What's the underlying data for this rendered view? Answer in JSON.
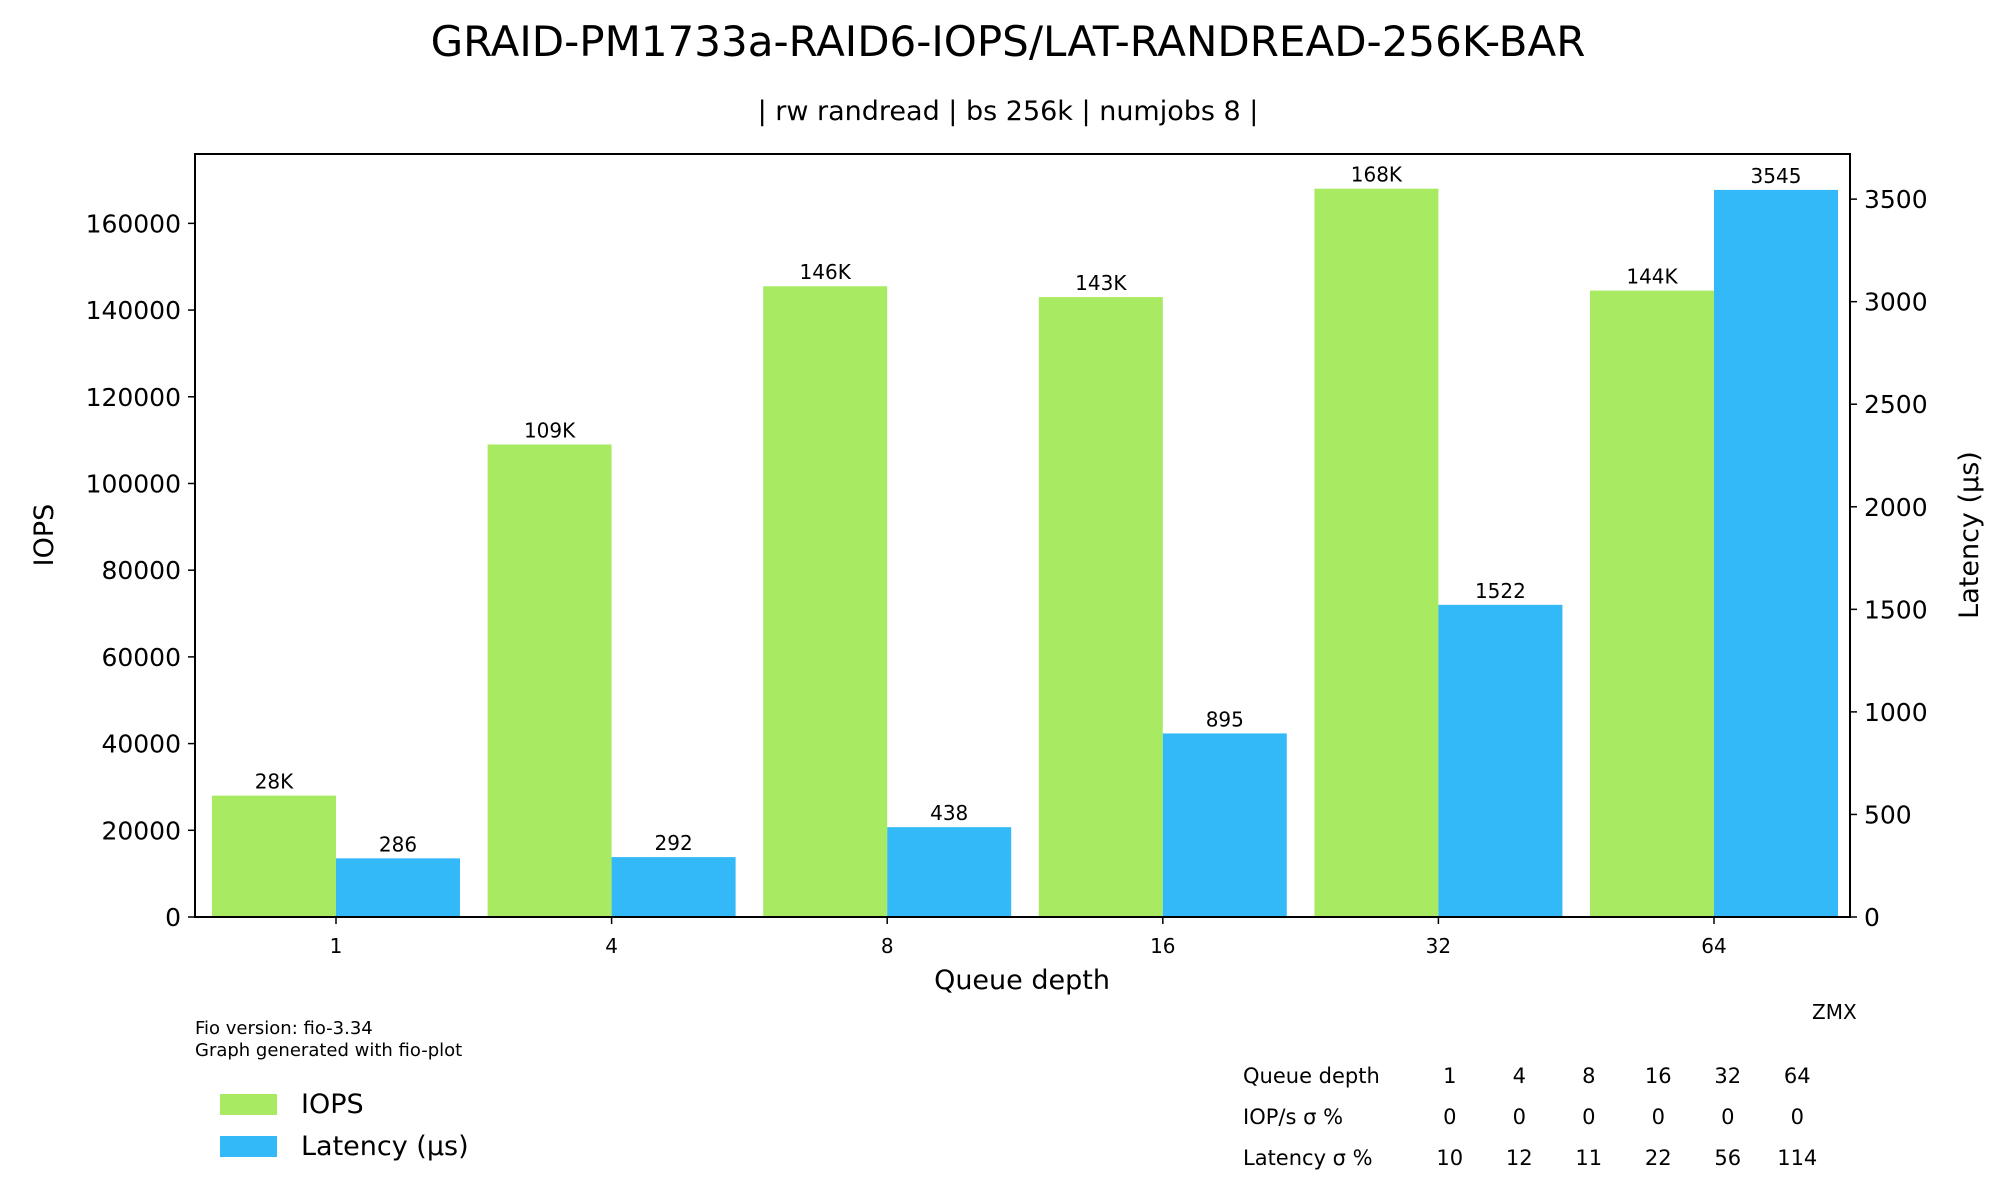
{
  "chart_data": {
    "type": "bar",
    "title": "GRAID-PM1733a-RAID6-IOPS/LAT-RANDREAD-256K-BAR",
    "subtitle": "| rw randread | bs 256k | numjobs 8 |",
    "xlabel": "Queue depth",
    "ylabel": "IOPS",
    "y2label": "Latency (µs)",
    "categories": [
      "1",
      "4",
      "8",
      "16",
      "32",
      "64"
    ],
    "ylim": [
      0,
      176000
    ],
    "y2lim": [
      0,
      3720
    ],
    "yticks": [
      0,
      20000,
      40000,
      60000,
      80000,
      100000,
      120000,
      140000,
      160000
    ],
    "y2ticks": [
      0,
      500,
      1000,
      1500,
      2000,
      2500,
      3000,
      3500
    ],
    "series": [
      {
        "name": "IOPS",
        "axis": "left",
        "color": "#a8eb62",
        "values": [
          28000,
          109000,
          145500,
          143000,
          168000,
          144500
        ],
        "labels": [
          "28K",
          "109K",
          "146K",
          "143K",
          "168K",
          "144K"
        ]
      },
      {
        "name": "Latency (µs)",
        "axis": "right",
        "color": "#34b9f8",
        "values": [
          286,
          292,
          438,
          895,
          1522,
          3545
        ],
        "labels": [
          "286",
          "292",
          "438",
          "895",
          "1522",
          "3545"
        ]
      }
    ],
    "legend": "bottom-left"
  },
  "footer": {
    "fio_version": "Fio version: fio-3.34",
    "generated": "Graph generated with fio-plot",
    "watermark": "ZMX"
  },
  "stats_table": {
    "header_label": "Queue depth",
    "header_values": [
      "1",
      "4",
      "8",
      "16",
      "32",
      "64"
    ],
    "rows": [
      {
        "label": "IOP/s σ %",
        "values": [
          "0",
          "0",
          "0",
          "0",
          "0",
          "0"
        ]
      },
      {
        "label": "Latency σ %",
        "values": [
          "10",
          "12",
          "11",
          "22",
          "56",
          "114"
        ]
      }
    ]
  }
}
